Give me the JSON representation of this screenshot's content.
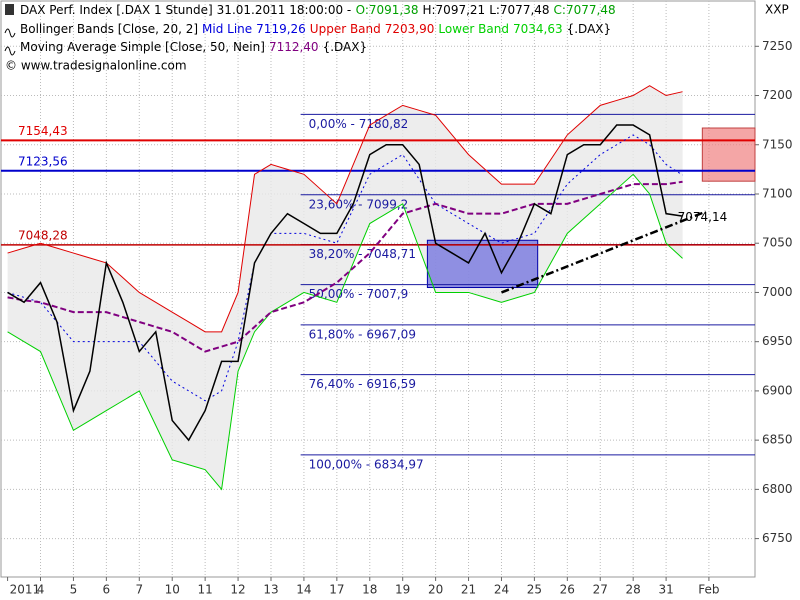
{
  "chart_data": {
    "type": "line",
    "header": {
      "datetime": "31.01.2011 18:00:00 -",
      "ohlc": [
        {
          "text": "O:7091,38",
          "color": "#00a000"
        },
        {
          "text": "H:7097,21",
          "color": "#000000"
        },
        {
          "text": "L:7077,48",
          "color": "#000000"
        },
        {
          "text": "C:7077,48",
          "color": "#00a000"
        }
      ],
      "bollinger": "Bollinger Bands [Close, 20, 2]",
      "suffix": "{.DAX}",
      "watermark": "© www.tradesignalonline.com"
    },
    "y_axis_label": "XXP",
    "x": [
      0,
      0.5,
      1,
      1.5,
      2,
      2.5,
      3,
      3.5,
      4,
      4.5,
      5,
      5.5,
      6,
      6.5,
      7,
      7.5,
      8,
      8.5,
      9,
      9.5,
      10,
      10.5,
      11,
      11.5,
      12,
      12.5,
      13,
      13.5,
      14,
      14.5,
      15,
      15.5,
      16,
      16.5,
      17,
      17.5,
      18,
      18.5,
      19,
      19.5,
      20,
      20.5
    ],
    "series": [
      {
        "name": "DAX Perf. Index [.DAX  1 Stunde]",
        "color": "#000000",
        "style": "solid",
        "values": [
          7000,
          6990,
          7010,
          6970,
          6880,
          6920,
          7030,
          6990,
          6940,
          6960,
          6870,
          6850,
          6880,
          6930,
          6930,
          7030,
          7060,
          7080,
          7070,
          7060,
          7060,
          7090,
          7140,
          7150,
          7150,
          7130,
          7050,
          7040,
          7030,
          7060,
          7020,
          7050,
          7090,
          7080,
          7140,
          7150,
          7150,
          7170,
          7170,
          7160,
          7080,
          7077.48
        ]
      },
      {
        "name": "Mid Line",
        "last_label": "7119,26",
        "color": "#0000dd",
        "style": "dotted",
        "values": [
          7000,
          6995,
          6990,
          6970,
          6950,
          6950,
          6950,
          6950,
          6950,
          6930,
          6910,
          6900,
          6890,
          6900,
          6950,
          7030,
          7060,
          7060,
          7060,
          7055,
          7050,
          7085,
          7120,
          7130,
          7140,
          7115,
          7090,
          7080,
          7070,
          7060,
          7050,
          7055,
          7060,
          7085,
          7110,
          7125,
          7140,
          7150,
          7160,
          7150,
          7130,
          7119.26
        ]
      },
      {
        "name": "Upper Band",
        "last_label": "7203,90",
        "color": "#e00000",
        "style": "solid",
        "values": [
          7040,
          7045,
          7050,
          7045,
          7040,
          7035,
          7030,
          7015,
          7000,
          6990,
          6980,
          6970,
          6960,
          6960,
          7000,
          7120,
          7130,
          7125,
          7120,
          7105,
          7090,
          7130,
          7170,
          7180,
          7190,
          7185,
          7180,
          7160,
          7140,
          7125,
          7110,
          7110,
          7110,
          7135,
          7160,
          7175,
          7190,
          7195,
          7200,
          7210,
          7200,
          7203.9
        ]
      },
      {
        "name": "Lower Band",
        "last_label": "7034,63",
        "color": "#00d000",
        "style": "solid",
        "values": [
          6960,
          6950,
          6940,
          6900,
          6860,
          6870,
          6880,
          6890,
          6900,
          6865,
          6830,
          6825,
          6820,
          6800,
          6920,
          6960,
          6980,
          6990,
          7000,
          6995,
          6990,
          7030,
          7070,
          7080,
          7090,
          7045,
          7000,
          7000,
          7000,
          6995,
          6990,
          6995,
          7000,
          7030,
          7060,
          7075,
          7090,
          7105,
          7120,
          7100,
          7050,
          7034.63
        ]
      },
      {
        "name": "Moving Average Simple [Close, 50, Nein]",
        "last_label": "7112,40",
        "color": "#800080",
        "style": "dashed",
        "values": [
          6995,
          6992,
          6990,
          6985,
          6980,
          6980,
          6980,
          6975,
          6970,
          6965,
          6960,
          6950,
          6940,
          6945,
          6950,
          6965,
          6980,
          6985,
          6990,
          7000,
          7010,
          7025,
          7040,
          7060,
          7080,
          7085,
          7090,
          7085,
          7080,
          7080,
          7080,
          7085,
          7090,
          7090,
          7090,
          7095,
          7100,
          7105,
          7110,
          7110,
          7110,
          7112.4
        ]
      }
    ],
    "levels": [
      {
        "value": 7154.43,
        "label": "7154,43",
        "color": "#e00000"
      },
      {
        "value": 7123.56,
        "label": "7123,56",
        "color": "#0000cc"
      },
      {
        "value": 7048.28,
        "label": "7048,28",
        "color": "#c00000"
      }
    ],
    "fibonacci": {
      "color": "#1a1aa0",
      "start": 8.9,
      "levels": [
        {
          "value": 7180.82,
          "label": "0,00% - 7180,82"
        },
        {
          "value": 7099.2,
          "label": "23,60% - 7099,2"
        },
        {
          "value": 7048.71,
          "label": "38,20% - 7048,71"
        },
        {
          "value": 7007.9,
          "label": "50,00% - 7007,9"
        },
        {
          "value": 6967.09,
          "label": "61,80% - 6967,09"
        },
        {
          "value": 6916.59,
          "label": "76,40% - 6916,59"
        },
        {
          "value": 6834.97,
          "label": "100,00% - 6834,97"
        }
      ]
    },
    "trendline": {
      "x": [
        15,
        21.2
      ],
      "values": [
        7000,
        7082
      ],
      "label": {
        "value": 7074.14,
        "label": "7074,14"
      }
    },
    "boxes": [
      {
        "x": [
          12.75,
          16.1
        ],
        "values": [
          7005,
          7053
        ],
        "color": "#6666dd"
      },
      {
        "x": [
          21.1,
          22.7
        ],
        "values": [
          7113,
          7167
        ],
        "color": "#f08080"
      }
    ],
    "xlim": [
      -0.2,
      22.7
    ],
    "ylim": [
      6711,
      7296
    ],
    "xticks": [
      {
        "value": 0,
        "label": "2011"
      },
      {
        "value": 1,
        "label": "4"
      },
      {
        "value": 2,
        "label": "5"
      },
      {
        "value": 3,
        "label": "6"
      },
      {
        "value": 4,
        "label": "7"
      },
      {
        "value": 5,
        "label": "10"
      },
      {
        "value": 6,
        "label": "11"
      },
      {
        "value": 7,
        "label": "12"
      },
      {
        "value": 8,
        "label": "13"
      },
      {
        "value": 9,
        "label": "14"
      },
      {
        "value": 10,
        "label": "17"
      },
      {
        "value": 11,
        "label": "18"
      },
      {
        "value": 12,
        "label": "19"
      },
      {
        "value": 13,
        "label": "20"
      },
      {
        "value": 14,
        "label": "21"
      },
      {
        "value": 15,
        "label": "24"
      },
      {
        "value": 16,
        "label": "25"
      },
      {
        "value": 17,
        "label": "26"
      },
      {
        "value": 18,
        "label": "27"
      },
      {
        "value": 19,
        "label": "28"
      },
      {
        "value": 20,
        "label": "31"
      },
      {
        "value": 21.3,
        "label": "Feb"
      }
    ],
    "yticks": [
      6750,
      6800,
      6850,
      6900,
      6950,
      7000,
      7050,
      7100,
      7150,
      7200,
      7250
    ],
    "grid": true
  }
}
